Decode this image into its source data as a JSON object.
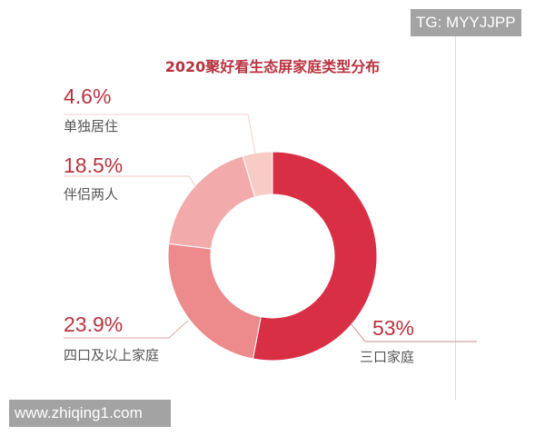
{
  "watermarks": {
    "top_right": "TG: MYYJJPP",
    "bottom_left": "www.zhiqing1.com"
  },
  "chart_data": {
    "type": "pie",
    "donut": true,
    "title": "2020聚好看生态屏家庭类型分布",
    "start": "12 o'clock, clockwise",
    "slices": [
      {
        "label": "三口家庭",
        "value": 53,
        "display": "53%",
        "color": "#d92f45"
      },
      {
        "label": "四口及以上家庭",
        "value": 23.9,
        "display": "23.9%",
        "color": "#ec8a8c"
      },
      {
        "label": "伴侣两人",
        "value": 18.5,
        "display": "18.5%",
        "color": "#f2abaa"
      },
      {
        "label": "单独居住",
        "value": 4.6,
        "display": "4.6%",
        "color": "#f8cbc5"
      }
    ]
  }
}
